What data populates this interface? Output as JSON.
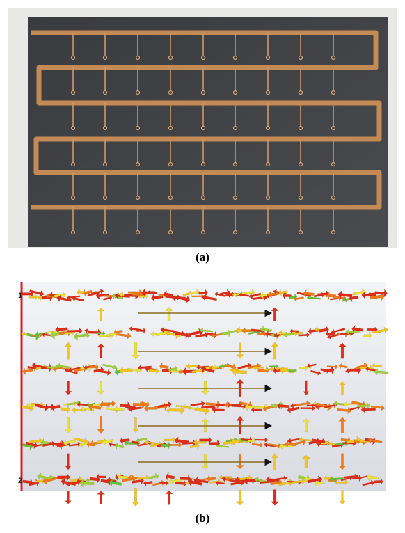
{
  "figure": {
    "panel_a": {
      "caption": "(a)"
    },
    "panel_b": {
      "caption": "(b)",
      "port_1": "1",
      "port_2": "2"
    }
  }
}
